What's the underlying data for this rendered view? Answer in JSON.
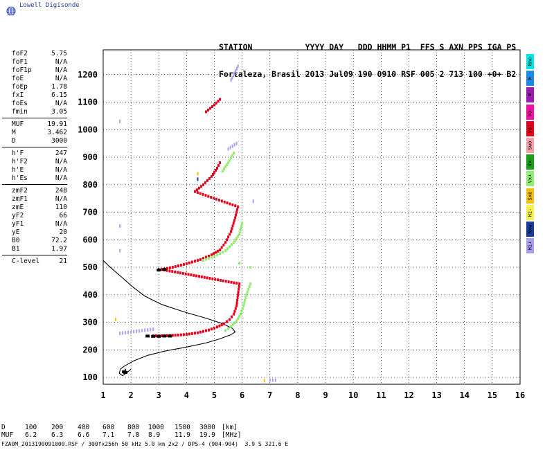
{
  "brand": {
    "name": "Lowell Digisonde",
    "logo_icon": "globe-icon"
  },
  "station": {
    "header": "STATION           YYYY DAY   DDD HHMM P1  FFS S AXN PPS IGA PS",
    "values": "Fortaleza, Brasil 2013 Jul09 190 0910 RSF 005 2 713 100 +0+ B2"
  },
  "params": [
    [
      {
        "label": "foF2",
        "value": "5.75"
      },
      {
        "label": "foF1",
        "value": "N/A"
      },
      {
        "label": "foF1p",
        "value": "N/A"
      },
      {
        "label": "foE",
        "value": "N/A"
      },
      {
        "label": "foEp",
        "value": "1.78"
      },
      {
        "label": "fxI",
        "value": "6.15"
      },
      {
        "label": "foEs",
        "value": "N/A"
      },
      {
        "label": "fmin",
        "value": "3.05"
      }
    ],
    [
      {
        "label": "MUF",
        "value": "19.91"
      },
      {
        "label": "M",
        "value": "3.462"
      },
      {
        "label": "D",
        "value": "3000"
      }
    ],
    [
      {
        "label": "h'F",
        "value": "247"
      },
      {
        "label": "h'F2",
        "value": "N/A"
      },
      {
        "label": "h'E",
        "value": "N/A"
      },
      {
        "label": "h'Es",
        "value": "N/A"
      }
    ],
    [
      {
        "label": "zmF2",
        "value": "248"
      },
      {
        "label": "zmF1",
        "value": "N/A"
      },
      {
        "label": "zmE",
        "value": "110"
      },
      {
        "label": "yF2",
        "value": "66"
      },
      {
        "label": "yF1",
        "value": "N/A"
      },
      {
        "label": "yE",
        "value": "20"
      },
      {
        "label": "B0",
        "value": "72.2"
      },
      {
        "label": "B1",
        "value": "1.97"
      }
    ],
    [
      {
        "label": "C-level",
        "value": "21"
      }
    ]
  ],
  "legend": [
    {
      "label": "Nne",
      "color": "#00e5e5"
    },
    {
      "label": "E",
      "color": "#1e88e5"
    },
    {
      "label": "W",
      "color": "#9c1bb0"
    },
    {
      "label": "Vo-",
      "color": "#ee10a0"
    },
    {
      "label": "Vo+",
      "color": "#e8001a"
    },
    {
      "label": "Swo",
      "color": "#f4a0a8"
    },
    {
      "label": "Vx-",
      "color": "#18a018"
    },
    {
      "label": "Vx+",
      "color": "#90ee70"
    },
    {
      "label": "Sxe",
      "color": "#f2c010"
    },
    {
      "label": "Hi-",
      "color": "#f4f050"
    },
    {
      "label": "Nxw",
      "color": "#1a3c9c"
    },
    {
      "label": "Hi+",
      "color": "#a8a0ec"
    }
  ],
  "muf_table": {
    "d_label": "D",
    "d_values": [
      "100",
      "200",
      "400",
      "600",
      "800",
      "1000",
      "1500",
      "3000"
    ],
    "d_unit": "[km]",
    "muf_label": "MUF",
    "muf_values": [
      "6.2",
      "6.3",
      "6.6",
      "7.1",
      "7.8",
      "8.9",
      "11.9",
      "19.9"
    ],
    "muf_unit": "[MHz]"
  },
  "footer": "FZA0M_2013190091000.RSF / 300fx256h 50 kHz 5.0 km 2x2 / DPS-4 (904-904)  3.9 S 321.6 E",
  "chart_data": {
    "type": "scatter",
    "title": "",
    "xlabel": "",
    "ylabel": "",
    "xlim": [
      1,
      16
    ],
    "ylim": [
      75,
      1290
    ],
    "x_ticks": [
      1,
      2,
      3,
      4,
      5,
      6,
      7,
      8,
      9,
      10,
      11,
      12,
      13,
      14,
      15,
      16
    ],
    "y_ticks": [
      100,
      200,
      300,
      400,
      500,
      600,
      700,
      800,
      900,
      1000,
      1100,
      1200
    ],
    "grid": true,
    "series": [
      {
        "name": "Vo+",
        "color": "#e8001a",
        "points": [
          [
            2.8,
            251
          ],
          [
            3.2,
            251
          ],
          [
            3.6,
            253
          ],
          [
            4.0,
            256
          ],
          [
            4.4,
            262
          ],
          [
            4.8,
            272
          ],
          [
            5.1,
            283
          ],
          [
            5.35,
            295
          ],
          [
            5.55,
            310
          ],
          [
            5.7,
            330
          ],
          [
            5.8,
            360
          ],
          [
            5.85,
            400
          ],
          [
            5.9,
            440
          ],
          [
            3.1,
            492
          ],
          [
            3.5,
            500
          ],
          [
            4.0,
            513
          ],
          [
            4.5,
            528
          ],
          [
            4.9,
            545
          ],
          [
            5.2,
            563
          ],
          [
            5.4,
            590
          ],
          [
            5.6,
            630
          ],
          [
            5.75,
            680
          ],
          [
            5.85,
            720
          ],
          [
            4.3,
            775
          ],
          [
            4.6,
            800
          ],
          [
            4.9,
            830
          ],
          [
            5.1,
            860
          ],
          [
            5.2,
            880
          ],
          [
            4.7,
            1065
          ],
          [
            5.0,
            1090
          ],
          [
            5.2,
            1110
          ]
        ]
      },
      {
        "name": "Vx+",
        "color": "#90ee70",
        "points": [
          [
            5.4,
            270
          ],
          [
            5.6,
            285
          ],
          [
            5.8,
            305
          ],
          [
            5.95,
            330
          ],
          [
            6.05,
            360
          ],
          [
            6.15,
            400
          ],
          [
            6.3,
            440
          ],
          [
            4.6,
            525
          ],
          [
            5.0,
            540
          ],
          [
            5.4,
            560
          ],
          [
            5.7,
            590
          ],
          [
            5.9,
            620
          ],
          [
            6.0,
            660
          ],
          [
            5.3,
            850
          ],
          [
            5.5,
            880
          ],
          [
            5.7,
            915
          ],
          [
            5.9,
            515
          ],
          [
            6.3,
            500
          ]
        ]
      },
      {
        "name": "Hi+",
        "color": "#a8a0ec",
        "points": [
          [
            1.6,
            1030
          ],
          [
            1.6,
            650
          ],
          [
            1.6,
            560
          ],
          [
            1.6,
            260
          ],
          [
            2.8,
            275
          ],
          [
            5.6,
            1180
          ],
          [
            5.85,
            1230
          ],
          [
            5.5,
            930
          ],
          [
            5.8,
            950
          ],
          [
            6.4,
            740
          ],
          [
            7.0,
            90
          ],
          [
            7.2,
            90
          ]
        ]
      },
      {
        "name": "Sxe",
        "color": "#f2c010",
        "points": [
          [
            1.45,
            310
          ],
          [
            4.4,
            840
          ],
          [
            6.8,
            88
          ]
        ]
      },
      {
        "name": "Nxw",
        "color": "#1a3c9c",
        "points": [
          [
            1.8,
            125
          ],
          [
            4.4,
            820
          ],
          [
            3.0,
            492
          ]
        ]
      }
    ],
    "black_trace": [
      [
        2.6,
        250
      ],
      [
        2.8,
        249
      ],
      [
        3.0,
        249
      ],
      [
        3.2,
        250
      ],
      [
        3.4,
        250
      ],
      [
        3.0,
        490
      ],
      [
        3.2,
        492
      ],
      [
        1.75,
        120
      ],
      [
        1.8,
        118
      ]
    ],
    "profile_line": {
      "name": "profile",
      "color": "#000000",
      "points": [
        [
          1.62,
          130
        ],
        [
          1.75,
          140
        ],
        [
          2.1,
          160
        ],
        [
          2.6,
          180
        ],
        [
          3.2,
          195
        ],
        [
          4.0,
          210
        ],
        [
          4.7,
          225
        ],
        [
          5.2,
          240
        ],
        [
          5.6,
          255
        ],
        [
          5.75,
          265
        ],
        [
          5.65,
          278
        ],
        [
          5.3,
          295
        ],
        [
          4.7,
          315
        ],
        [
          3.9,
          338
        ],
        [
          3.1,
          365
        ],
        [
          2.5,
          395
        ],
        [
          2.05,
          430
        ],
        [
          1.6,
          470
        ],
        [
          1.2,
          505
        ],
        [
          1.0,
          525
        ]
      ],
      "tail": [
        [
          1.62,
          130
        ],
        [
          1.58,
          115
        ],
        [
          1.7,
          106
        ],
        [
          1.95,
          125
        ],
        [
          2.0,
          130
        ]
      ]
    }
  }
}
